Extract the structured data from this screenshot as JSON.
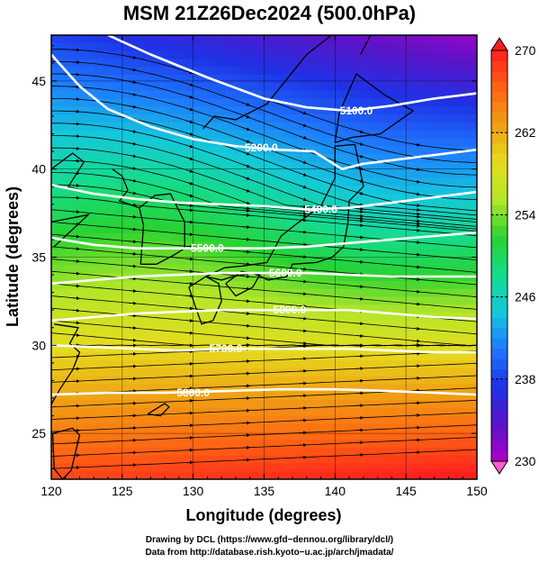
{
  "chart_data": {
    "type": "heatmap",
    "title": "MSM 21Z26Dec2024 (500.0hPa)",
    "xlabel": "Longitude (degrees)",
    "ylabel": "Latitude  (degrees)",
    "xlim": [
      120,
      150
    ],
    "ylim": [
      22.4,
      47.6
    ],
    "x_ticks": [
      120,
      125,
      130,
      135,
      140,
      145,
      150
    ],
    "y_ticks": [
      25,
      30,
      35,
      40,
      45
    ],
    "colorbar": {
      "range": [
        230,
        270
      ],
      "ticks": [
        230,
        238,
        246,
        254,
        262,
        270
      ],
      "colormap": [
        "#b000c8",
        "#5a14c8",
        "#1e32e6",
        "#1e78ff",
        "#14c8dc",
        "#14dc8c",
        "#28d232",
        "#b4e628",
        "#e6dc1e",
        "#f0a014",
        "#ff6414",
        "#ff1e1e"
      ]
    },
    "temperature_field_note": "Temperature (K) increases from ~232 in the northeast corner to ~268 in the southeast corner",
    "contours": [
      {
        "label": "5100.0",
        "label_lon": 141.5,
        "label_lat": 43.3,
        "path": [
          [
            124,
            47.6
          ],
          [
            127,
            46.5
          ],
          [
            131,
            45.2
          ],
          [
            135,
            44.0
          ],
          [
            138,
            43.5
          ],
          [
            141,
            43.3
          ],
          [
            144,
            43.6
          ],
          [
            147,
            44.0
          ],
          [
            150,
            44.3
          ]
        ]
      },
      {
        "label": "5200.0",
        "label_lon": 134.8,
        "label_lat": 41.2,
        "path": [
          [
            120,
            46.5
          ],
          [
            122,
            44.7
          ],
          [
            124,
            43.4
          ],
          [
            127,
            42.4
          ],
          [
            130,
            41.7
          ],
          [
            133,
            41.3
          ],
          [
            136,
            41.1
          ],
          [
            138.5,
            41.0
          ],
          [
            140.5,
            40.0
          ],
          [
            142,
            40.3
          ],
          [
            145,
            40.6
          ],
          [
            150,
            41.1
          ]
        ]
      },
      {
        "label": "5400.0",
        "label_lon": 139.0,
        "label_lat": 37.7,
        "path": [
          [
            120,
            39.1
          ],
          [
            123,
            38.6
          ],
          [
            126,
            38.3
          ],
          [
            129,
            38.1
          ],
          [
            132,
            38.0
          ],
          [
            135,
            37.9
          ],
          [
            138,
            37.7
          ],
          [
            141,
            37.8
          ],
          [
            144,
            38.1
          ],
          [
            147,
            38.4
          ],
          [
            150,
            38.7
          ]
        ]
      },
      {
        "label": "5500.0",
        "label_lon": 131.0,
        "label_lat": 35.5,
        "path": [
          [
            120,
            36.1
          ],
          [
            123,
            35.7
          ],
          [
            126,
            35.5
          ],
          [
            129,
            35.5
          ],
          [
            132,
            35.5
          ],
          [
            135,
            35.5
          ],
          [
            138,
            35.6
          ],
          [
            141,
            35.8
          ],
          [
            144,
            36.0
          ],
          [
            147,
            36.2
          ],
          [
            150,
            36.4
          ]
        ]
      },
      {
        "label": "5600.0",
        "label_lon": 136.5,
        "label_lat": 34.1,
        "path": [
          [
            120,
            33.5
          ],
          [
            123,
            33.7
          ],
          [
            126,
            33.9
          ],
          [
            129,
            34.0
          ],
          [
            132,
            34.1
          ],
          [
            135,
            34.1
          ],
          [
            138,
            34.1
          ],
          [
            141,
            34.0
          ],
          [
            144,
            33.9
          ],
          [
            147,
            33.9
          ],
          [
            150,
            33.9
          ]
        ]
      },
      {
        "label": "5800.0",
        "label_lon": 136.8,
        "label_lat": 32.0,
        "path": [
          [
            120,
            31.4
          ],
          [
            123,
            31.6
          ],
          [
            126,
            31.8
          ],
          [
            129,
            31.9
          ],
          [
            132,
            32.0
          ],
          [
            135,
            32.0
          ],
          [
            138,
            32.0
          ],
          [
            141,
            32.0
          ],
          [
            144,
            31.8
          ],
          [
            147,
            31.6
          ],
          [
            150,
            31.5
          ]
        ]
      },
      {
        "label": "5700.0",
        "label_lon": 132.3,
        "label_lat": 29.8,
        "path": [
          [
            120,
            30.0
          ],
          [
            123,
            29.9
          ],
          [
            126,
            29.8
          ],
          [
            129,
            29.7
          ],
          [
            132,
            29.8
          ],
          [
            135,
            29.8
          ],
          [
            138,
            29.8
          ],
          [
            141,
            29.8
          ],
          [
            144,
            29.7
          ],
          [
            147,
            29.6
          ],
          [
            150,
            29.6
          ]
        ]
      },
      {
        "label": "5800.0",
        "label_lon": 130.0,
        "label_lat": 27.3,
        "path": [
          [
            120,
            27.2
          ],
          [
            124,
            27.3
          ],
          [
            128,
            27.3
          ],
          [
            132,
            27.4
          ],
          [
            136,
            27.5
          ],
          [
            140,
            27.5
          ],
          [
            144,
            27.4
          ],
          [
            147,
            27.3
          ],
          [
            150,
            27.2
          ]
        ]
      }
    ]
  },
  "credits": {
    "line1": "Drawing by DCL (https://www.gfd−dennou.org/library/dcl/)",
    "line2": "Data from http://database.rish.kyoto−u.ac.jp/arch/jmadata/"
  }
}
